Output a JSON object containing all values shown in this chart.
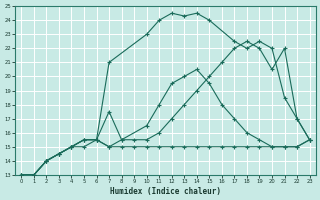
{
  "xlabel": "Humidex (Indice chaleur)",
  "bg_color": "#c8eae5",
  "grid_color": "#ffffff",
  "line_color": "#1a6b5a",
  "xlim": [
    -0.5,
    23.5
  ],
  "ylim": [
    13,
    25
  ],
  "xticks": [
    0,
    1,
    2,
    3,
    4,
    5,
    6,
    7,
    8,
    9,
    10,
    11,
    12,
    13,
    14,
    15,
    16,
    17,
    18,
    19,
    20,
    21,
    22,
    23
  ],
  "yticks": [
    13,
    14,
    15,
    16,
    17,
    18,
    19,
    20,
    21,
    22,
    23,
    24,
    25
  ],
  "s1_x": [
    0,
    1,
    2,
    3,
    4,
    5,
    6,
    7,
    8,
    9,
    10,
    11,
    12,
    13,
    14,
    15,
    16,
    17,
    18,
    19,
    20,
    21,
    22,
    23
  ],
  "s1_y": [
    13,
    13,
    14,
    14.5,
    15,
    15,
    15.5,
    15,
    15,
    15,
    15,
    15,
    15,
    15,
    15,
    15,
    15,
    15,
    15,
    15,
    15,
    15,
    15,
    15.5
  ],
  "s2_x": [
    0,
    1,
    2,
    3,
    4,
    5,
    6,
    7,
    8,
    10,
    11,
    12,
    13,
    14,
    15,
    16,
    17,
    18,
    19,
    20,
    21,
    22,
    23
  ],
  "s2_y": [
    13,
    13,
    14,
    14.5,
    15,
    15.5,
    15.5,
    17.5,
    15.5,
    16.5,
    18,
    19.5,
    20,
    20.5,
    19.5,
    18,
    17,
    16,
    15.5,
    15,
    15,
    15,
    15.5
  ],
  "s3_x": [
    0,
    1,
    2,
    3,
    4,
    5,
    6,
    7,
    10,
    11,
    12,
    13,
    14,
    15,
    17,
    18,
    19,
    20,
    21,
    22,
    23
  ],
  "s3_y": [
    13,
    13,
    14,
    14.5,
    15,
    15.5,
    15.5,
    21,
    23,
    24,
    24.5,
    24.3,
    24.5,
    24,
    22.5,
    22,
    22.5,
    22,
    18.5,
    17,
    15.5
  ],
  "s4_x": [
    0,
    1,
    2,
    3,
    4,
    5,
    6,
    7,
    8,
    9,
    10,
    11,
    12,
    13,
    14,
    15,
    16,
    17,
    18,
    19,
    20,
    21,
    22,
    23
  ],
  "s4_y": [
    13,
    13,
    14,
    14.5,
    15,
    15.5,
    15.5,
    15,
    15.5,
    15.5,
    15.5,
    16,
    17,
    18,
    19,
    20,
    21,
    22,
    22.5,
    22,
    20.5,
    22,
    17,
    15.5
  ]
}
